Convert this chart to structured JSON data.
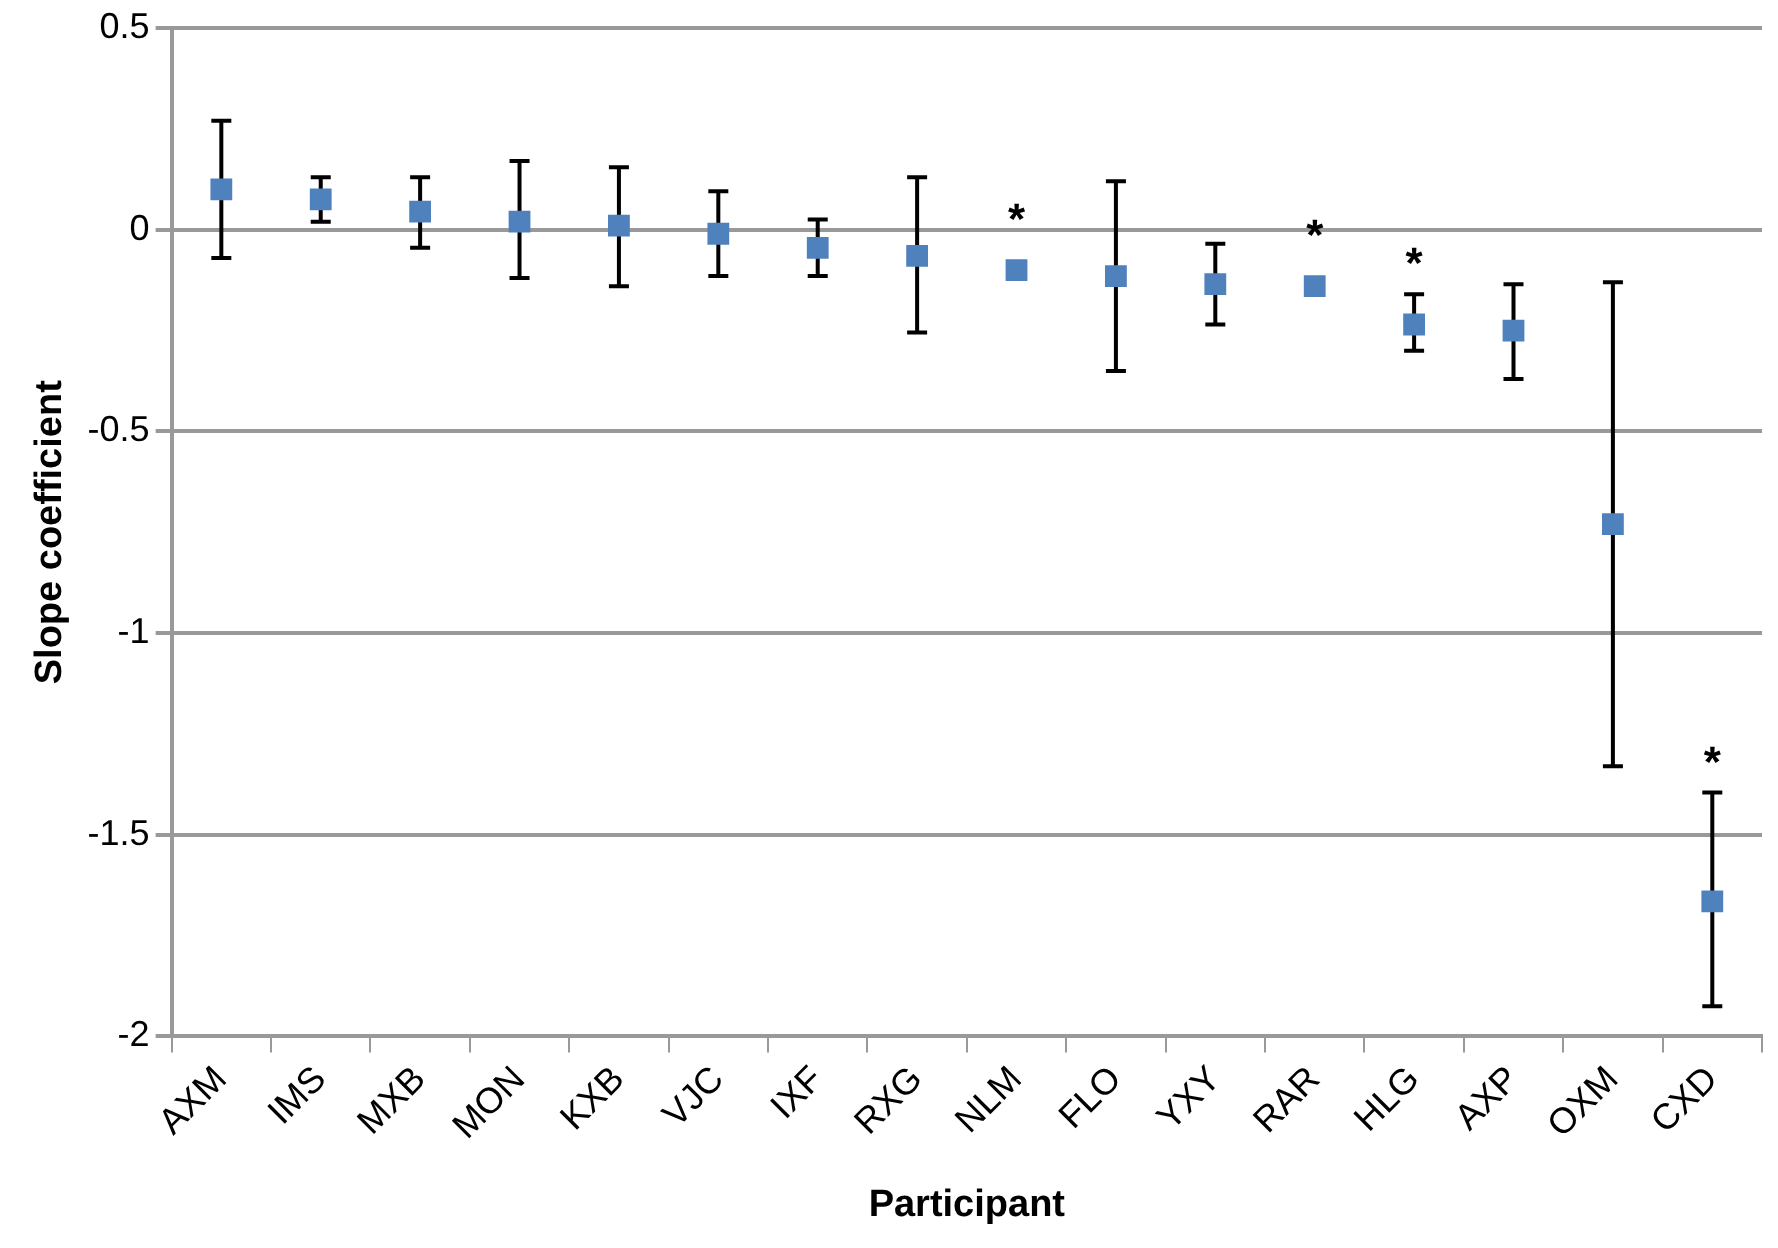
{
  "chart_data": {
    "type": "scatter",
    "xlabel": "Participant",
    "ylabel": "Slope coefficient",
    "categories": [
      "AXM",
      "IMS",
      "MXB",
      "MON",
      "KXB",
      "VJC",
      "IXF",
      "RXG",
      "NLM",
      "FLO",
      "YXY",
      "RAR",
      "HLG",
      "AXP",
      "OXM",
      "CXD"
    ],
    "series": [
      {
        "color": "#4f81bd",
        "values": [
          0.1,
          0.075,
          0.045,
          0.02,
          0.01,
          -0.01,
          -0.045,
          -0.065,
          -0.1,
          -0.115,
          -0.135,
          -0.14,
          -0.235,
          -0.25,
          -0.73,
          -1.665
        ],
        "value_labels": [
          null,
          null,
          null,
          null,
          null,
          null,
          null,
          null,
          "*",
          null,
          null,
          "*",
          "*",
          null,
          null,
          "*"
        ],
        "errors": [
          [
            -0.07,
            0.27
          ],
          [
            0.02,
            0.13
          ],
          [
            -0.045,
            0.13
          ],
          [
            -0.12,
            0.17
          ],
          [
            -0.14,
            0.155
          ],
          [
            -0.115,
            0.095
          ],
          [
            -0.115,
            0.025
          ],
          [
            -0.255,
            0.13
          ],
          null,
          [
            -0.35,
            0.12
          ],
          [
            -0.235,
            -0.035
          ],
          null,
          [
            -0.3,
            -0.16
          ],
          [
            -0.37,
            -0.135
          ],
          [
            -1.33,
            -0.13
          ],
          [
            -1.925,
            -1.395
          ]
        ]
      }
    ],
    "ylim": [
      -2,
      0.5
    ],
    "yticks": [
      0.5,
      0,
      -0.5,
      -1,
      -1.5,
      -2
    ],
    "grid": "y",
    "legend": false,
    "marker": "square"
  }
}
